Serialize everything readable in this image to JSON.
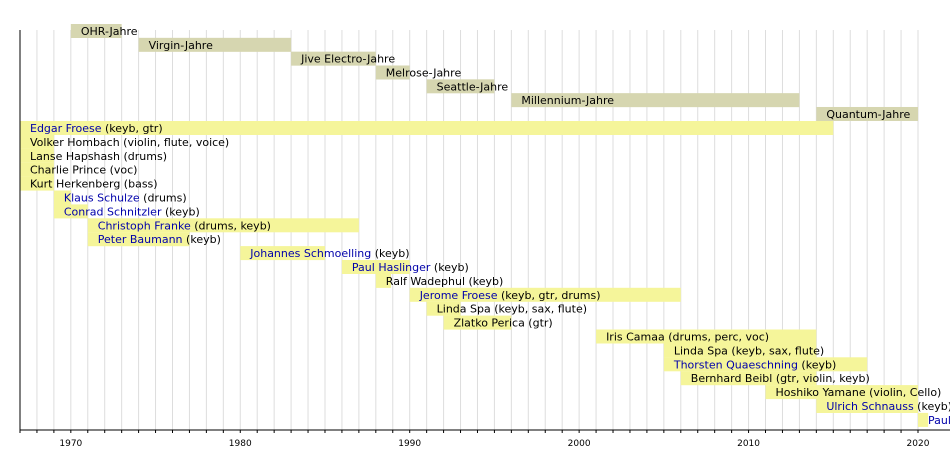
{
  "chart_data": {
    "type": "timeline",
    "x_range": [
      1967,
      2020
    ],
    "x_ticks": [
      1970,
      1980,
      1990,
      2000,
      2010,
      2020
    ],
    "grid": true,
    "colors": {
      "era": "#d6d6b0",
      "member": "#f5f59a",
      "link": "#0000aa",
      "text": "#000000",
      "grid": "#dddddd"
    },
    "eras": [
      {
        "label": "OHR-Jahre",
        "start": 1970,
        "end": 1973
      },
      {
        "label": "Virgin-Jahre",
        "start": 1974,
        "end": 1983
      },
      {
        "label": "Jive Electro-Jahre",
        "start": 1983,
        "end": 1988
      },
      {
        "label": "Melrose-Jahre",
        "start": 1988,
        "end": 1990
      },
      {
        "label": "Seattle-Jahre",
        "start": 1991,
        "end": 1995
      },
      {
        "label": "Millennium-Jahre",
        "start": 1996,
        "end": 2013
      },
      {
        "label": "Quantum-Jahre",
        "start": 2014,
        "end": 2020
      }
    ],
    "members": [
      {
        "name": "Edgar Froese",
        "role": " (keyb, gtr)",
        "link": true,
        "start": 1967,
        "end": 2015
      },
      {
        "name": "Volker Hombach",
        "role": " (violin, flute, voice)",
        "link": false,
        "start": 1967,
        "end": 1969
      },
      {
        "name": "Lanse Hapshash",
        "role": " (drums)",
        "link": false,
        "start": 1967,
        "end": 1969
      },
      {
        "name": "Charlie Prince",
        "role": " (voc)",
        "link": false,
        "start": 1967,
        "end": 1969
      },
      {
        "name": "Kurt Herkenberg",
        "role": " (bass)",
        "link": false,
        "start": 1967,
        "end": 1969
      },
      {
        "name": "Klaus Schulze",
        "role": " (drums)",
        "link": true,
        "start": 1969,
        "end": 1970
      },
      {
        "name": "Conrad Schnitzler",
        "role": " (keyb)",
        "link": true,
        "start": 1969,
        "end": 1971
      },
      {
        "name": "Christoph Franke",
        "role": " (drums, keyb)",
        "link": true,
        "start": 1971,
        "end": 1987
      },
      {
        "name": "Peter Baumann",
        "role": " (keyb)",
        "link": true,
        "start": 1971,
        "end": 1977
      },
      {
        "name": "Johannes Schmoelling",
        "role": " (keyb)",
        "link": true,
        "start": 1980,
        "end": 1985
      },
      {
        "name": "Paul Haslinger",
        "role": " (keyb)",
        "link": true,
        "start": 1986,
        "end": 1990
      },
      {
        "name": "Ralf Wadephul",
        "role": " (keyb)",
        "link": false,
        "start": 1988,
        "end": 1988.9
      },
      {
        "name": "Jerome Froese",
        "role": " (keyb, gtr, drums)",
        "link": true,
        "start": 1990,
        "end": 2006
      },
      {
        "name": "Linda Spa",
        "role": " (keyb, sax, flute)",
        "link": false,
        "start": 1991,
        "end": 1993
      },
      {
        "name": "Zlatko Perica",
        "role": " (gtr)",
        "link": false,
        "start": 1992,
        "end": 1996
      },
      {
        "name": "Iris Camaa",
        "role": " (drums, perc, voc)",
        "link": false,
        "start": 2001,
        "end": 2014
      },
      {
        "name": "Linda Spa",
        "role": " (keyb, sax, flute)",
        "link": false,
        "start": 2005,
        "end": 2014
      },
      {
        "name": "Thorsten Quaeschning",
        "role": " (keyb)",
        "link": true,
        "start": 2005,
        "end": 2017
      },
      {
        "name": "Bernhard Beibl",
        "role": " (gtr, violin, keyb)",
        "link": false,
        "start": 2006,
        "end": 2014
      },
      {
        "name": "Hoshiko Yamane",
        "role": " (violin, Cello)",
        "link": false,
        "start": 2011,
        "end": 2020
      },
      {
        "name": "Ulrich Schnauss",
        "role": " (keyb)",
        "link": true,
        "start": 2014,
        "end": 2020
      },
      {
        "name": "Paul Frick",
        "role": " (keyb)",
        "link": true,
        "start": 2020,
        "end": 2020.6
      }
    ]
  }
}
